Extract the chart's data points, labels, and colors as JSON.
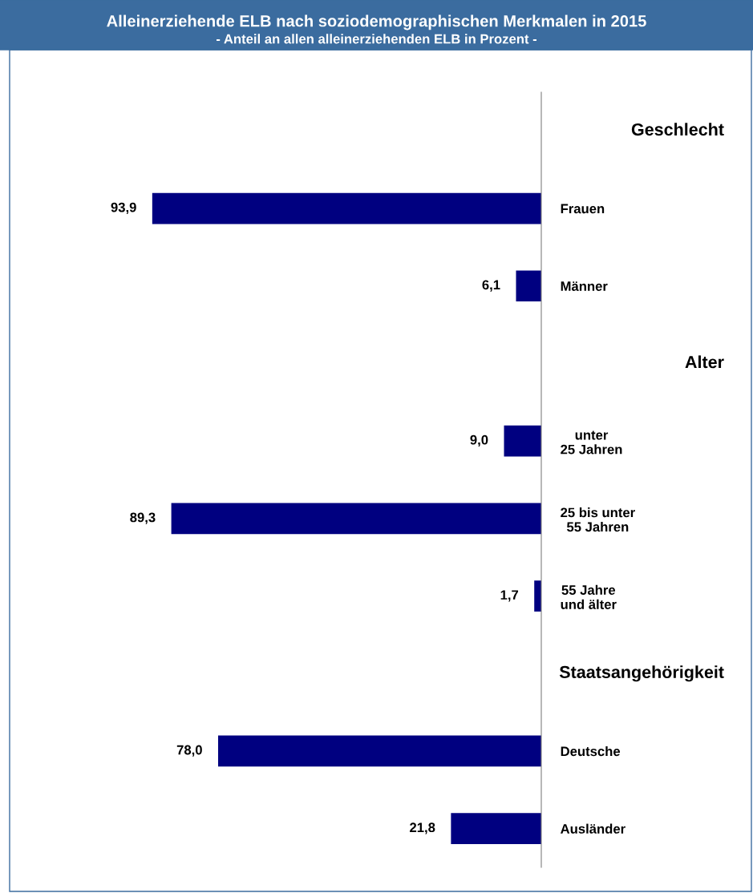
{
  "chart_data": {
    "type": "bar",
    "orientation": "horizontal",
    "title": "Alleinerziehende ELB nach soziodemographischen Merkmalen in 2015",
    "subtitle": "- Anteil an allen alleinerziehenden ELB in Prozent -",
    "categories": [
      null,
      "Frauen",
      "Männer",
      null,
      "unter\n25 Jahren",
      "25 bis unter\n55 Jahren",
      "55 Jahre\nund älter",
      null,
      "Deutsche",
      "Ausländer"
    ],
    "annotations": [
      "Geschlecht",
      "Alter",
      "Staatsangehörigkeit"
    ],
    "values": [
      null,
      93.9,
      6.1,
      null,
      9.0,
      89.3,
      1.7,
      null,
      78.0,
      21.8
    ],
    "value_labels": [
      null,
      "93,9",
      "6,1",
      null,
      "9,0",
      "89,3",
      "1,7",
      null,
      "78,0",
      "21,8"
    ],
    "color": "#000080",
    "tick_labels": "y",
    "grid": false,
    "legend": false
  }
}
